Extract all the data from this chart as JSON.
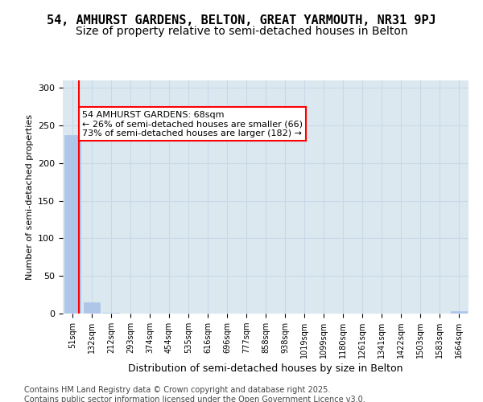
{
  "title": "54, AMHURST GARDENS, BELTON, GREAT YARMOUTH, NR31 9PJ",
  "subtitle": "Size of property relative to semi-detached houses in Belton",
  "xlabel": "Distribution of semi-detached houses by size in Belton",
  "ylabel": "Number of semi-detached properties",
  "categories": [
    "51sqm",
    "132sqm",
    "212sqm",
    "293sqm",
    "374sqm",
    "454sqm",
    "535sqm",
    "616sqm",
    "696sqm",
    "777sqm",
    "858sqm",
    "938sqm",
    "1019sqm",
    "1099sqm",
    "1180sqm",
    "1261sqm",
    "1341sqm",
    "1422sqm",
    "1503sqm",
    "1583sqm",
    "1664sqm"
  ],
  "values": [
    237,
    15,
    1,
    0,
    0,
    0,
    0,
    0,
    0,
    0,
    0,
    0,
    0,
    0,
    0,
    0,
    0,
    0,
    0,
    0,
    3
  ],
  "bar_color": "#aec6e8",
  "bar_edgecolor": "#aec6e8",
  "property_line_x": 0.35,
  "property_value": 68,
  "annotation_text": "54 AMHURST GARDENS: 68sqm\n← 26% of semi-detached houses are smaller (66)\n73% of semi-detached houses are larger (182) →",
  "annotation_box_color": "#ff0000",
  "grid_color": "#c8d8e8",
  "background_color": "#dce8f0",
  "ylim": [
    0,
    310
  ],
  "yticks": [
    0,
    50,
    100,
    150,
    200,
    250,
    300
  ],
  "footer_text": "Contains HM Land Registry data © Crown copyright and database right 2025.\nContains public sector information licensed under the Open Government Licence v3.0.",
  "title_fontsize": 11,
  "subtitle_fontsize": 10,
  "annot_fontsize": 8,
  "footer_fontsize": 7
}
